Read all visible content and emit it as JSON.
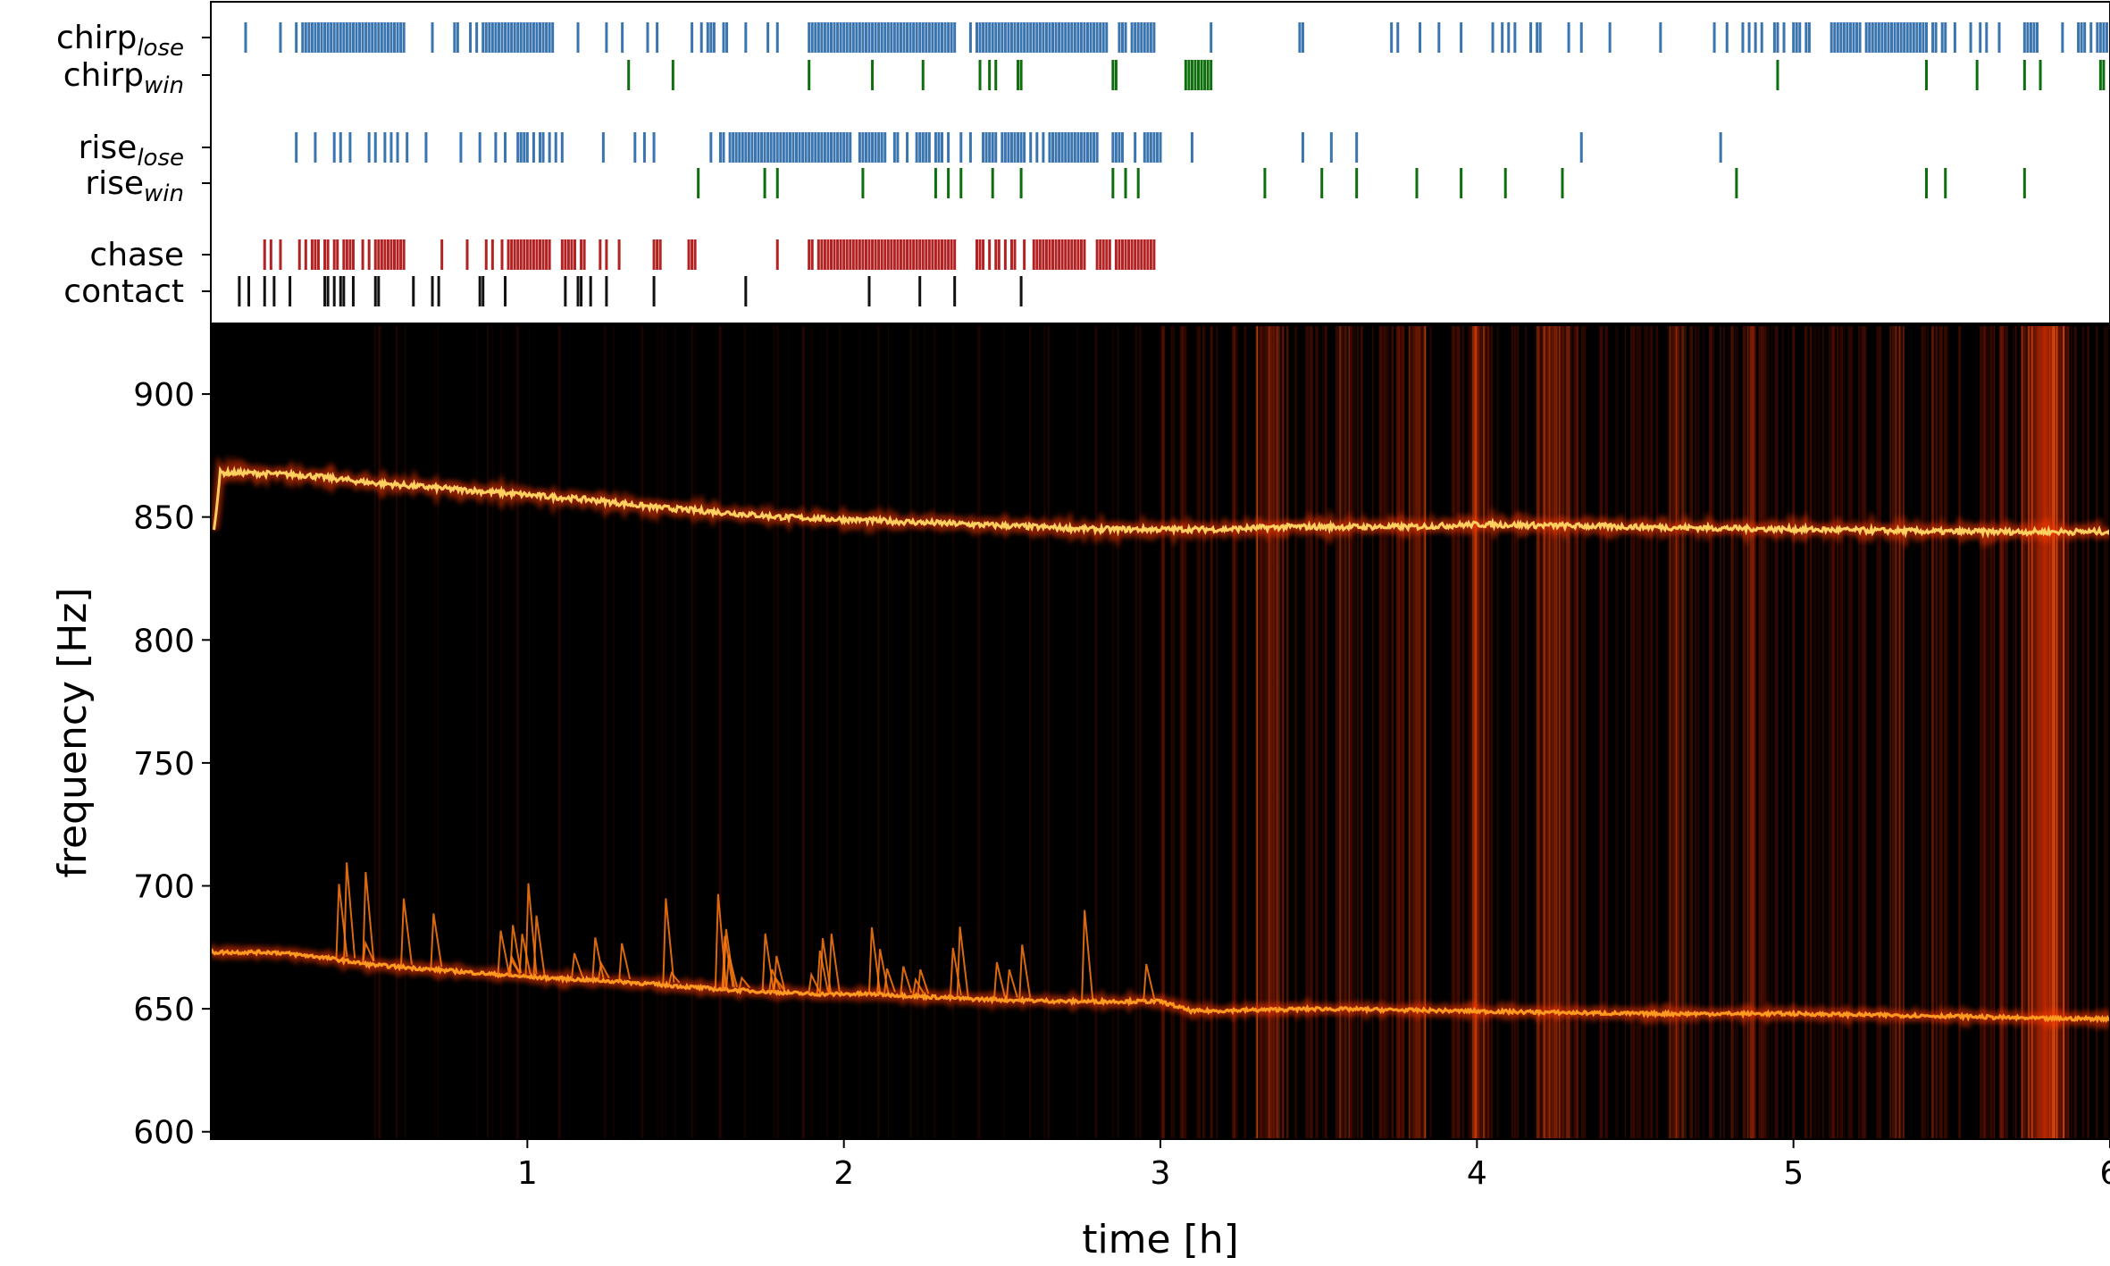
{
  "chart_data": [
    {
      "type": "event-raster",
      "xlim": [
        0,
        6
      ],
      "rows": [
        {
          "label": "chirp",
          "sub": "lose",
          "color": "#3b75af",
          "events": [
            0.11,
            0.22,
            0.27,
            0.29,
            0.3,
            0.31,
            0.32,
            0.33,
            0.34,
            0.35,
            0.36,
            0.37,
            0.38,
            0.39,
            0.4,
            0.41,
            0.42,
            0.43,
            0.44,
            0.45,
            0.46,
            0.47,
            0.48,
            0.49,
            0.5,
            0.51,
            0.52,
            0.53,
            0.54,
            0.55,
            0.56,
            0.57,
            0.58,
            0.59,
            0.6,
            0.61,
            0.7,
            0.77,
            0.78,
            0.82,
            0.84,
            0.86,
            0.87,
            0.88,
            0.89,
            0.9,
            0.91,
            0.92,
            0.93,
            0.94,
            0.95,
            0.96,
            0.97,
            0.98,
            0.99,
            1.0,
            1.01,
            1.02,
            1.03,
            1.04,
            1.05,
            1.06,
            1.07,
            1.08,
            1.16,
            1.25,
            1.3,
            1.38,
            1.41,
            1.52,
            1.55,
            1.57,
            1.58,
            1.59,
            1.62,
            1.63,
            1.69,
            1.76,
            1.79,
            1.89,
            1.9,
            1.91,
            1.92,
            1.93,
            1.94,
            1.95,
            1.96,
            1.97,
            1.98,
            1.99,
            2.0,
            2.01,
            2.02,
            2.03,
            2.04,
            2.05,
            2.06,
            2.07,
            2.08,
            2.09,
            2.1,
            2.11,
            2.12,
            2.13,
            2.14,
            2.15,
            2.16,
            2.17,
            2.18,
            2.19,
            2.2,
            2.21,
            2.22,
            2.23,
            2.24,
            2.25,
            2.26,
            2.27,
            2.28,
            2.29,
            2.3,
            2.31,
            2.32,
            2.33,
            2.34,
            2.35,
            2.4,
            2.42,
            2.43,
            2.44,
            2.45,
            2.46,
            2.47,
            2.48,
            2.49,
            2.5,
            2.51,
            2.52,
            2.53,
            2.54,
            2.55,
            2.56,
            2.57,
            2.58,
            2.59,
            2.6,
            2.61,
            2.62,
            2.63,
            2.64,
            2.65,
            2.66,
            2.67,
            2.68,
            2.69,
            2.7,
            2.71,
            2.72,
            2.73,
            2.74,
            2.75,
            2.76,
            2.77,
            2.78,
            2.79,
            2.8,
            2.81,
            2.82,
            2.83,
            2.87,
            2.88,
            2.89,
            2.91,
            2.92,
            2.93,
            2.94,
            2.95,
            2.96,
            2.97,
            2.98,
            3.16,
            3.44,
            3.45,
            3.73,
            3.75,
            3.82,
            3.88,
            3.95,
            4.05,
            4.08,
            4.1,
            4.12,
            4.17,
            4.19,
            4.2,
            4.29,
            4.33,
            4.42,
            4.58,
            4.75,
            4.79,
            4.84,
            4.86,
            4.88,
            4.9,
            4.94,
            4.95,
            4.97,
            5.0,
            5.01,
            5.02,
            5.04,
            5.05,
            5.12,
            5.13,
            5.14,
            5.15,
            5.16,
            5.17,
            5.18,
            5.19,
            5.2,
            5.21,
            5.23,
            5.24,
            5.25,
            5.26,
            5.27,
            5.28,
            5.29,
            5.3,
            5.31,
            5.32,
            5.33,
            5.34,
            5.35,
            5.36,
            5.37,
            5.38,
            5.39,
            5.4,
            5.41,
            5.42,
            5.44,
            5.45,
            5.47,
            5.48,
            5.51,
            5.56,
            5.59,
            5.61,
            5.65,
            5.73,
            5.74,
            5.75,
            5.76,
            5.77,
            5.85,
            5.9,
            5.91,
            5.92,
            5.94,
            5.96,
            5.97,
            5.98,
            5.99
          ]
        },
        {
          "label": "chirp",
          "sub": "win",
          "color": "#0e6e0e",
          "events": [
            1.32,
            1.46,
            1.89,
            2.09,
            2.25,
            2.43,
            2.46,
            2.48,
            2.55,
            2.56,
            2.85,
            2.86,
            3.08,
            3.09,
            3.1,
            3.11,
            3.12,
            3.13,
            3.14,
            3.15,
            3.16,
            4.95,
            5.42,
            5.58,
            5.73,
            5.78,
            5.97,
            5.98
          ]
        },
        {
          "label": "rise",
          "sub": "lose",
          "color": "#3b75af",
          "events": [
            0.27,
            0.33,
            0.39,
            0.41,
            0.44,
            0.5,
            0.52,
            0.55,
            0.57,
            0.59,
            0.62,
            0.68,
            0.79,
            0.85,
            0.9,
            0.93,
            0.97,
            0.98,
            0.99,
            1.0,
            1.02,
            1.04,
            1.05,
            1.07,
            1.09,
            1.11,
            1.24,
            1.34,
            1.37,
            1.4,
            1.58,
            1.61,
            1.62,
            1.64,
            1.65,
            1.66,
            1.67,
            1.68,
            1.69,
            1.7,
            1.71,
            1.72,
            1.73,
            1.74,
            1.75,
            1.76,
            1.77,
            1.78,
            1.79,
            1.8,
            1.81,
            1.82,
            1.83,
            1.84,
            1.85,
            1.86,
            1.87,
            1.88,
            1.89,
            1.9,
            1.91,
            1.92,
            1.93,
            1.94,
            1.95,
            1.96,
            1.97,
            1.98,
            1.99,
            2.0,
            2.01,
            2.02,
            2.05,
            2.06,
            2.07,
            2.08,
            2.09,
            2.1,
            2.11,
            2.12,
            2.13,
            2.16,
            2.17,
            2.2,
            2.23,
            2.24,
            2.25,
            2.26,
            2.27,
            2.29,
            2.3,
            2.31,
            2.33,
            2.37,
            2.4,
            2.44,
            2.45,
            2.46,
            2.47,
            2.48,
            2.5,
            2.51,
            2.52,
            2.53,
            2.54,
            2.55,
            2.56,
            2.57,
            2.59,
            2.61,
            2.63,
            2.65,
            2.66,
            2.67,
            2.68,
            2.69,
            2.7,
            2.71,
            2.72,
            2.73,
            2.74,
            2.75,
            2.76,
            2.77,
            2.78,
            2.79,
            2.8,
            2.85,
            2.86,
            2.87,
            2.88,
            2.92,
            2.95,
            2.96,
            2.97,
            2.98,
            2.99,
            3.0,
            3.1,
            3.45,
            3.54,
            3.62,
            4.33,
            4.77
          ]
        },
        {
          "label": "rise",
          "sub": "win",
          "color": "#0e6e0e",
          "events": [
            1.54,
            1.75,
            1.79,
            2.06,
            2.29,
            2.33,
            2.37,
            2.47,
            2.56,
            2.85,
            2.89,
            2.93,
            3.33,
            3.51,
            3.62,
            3.81,
            3.95,
            4.09,
            4.27,
            4.82,
            5.42,
            5.48,
            5.73
          ]
        },
        {
          "label": "chase",
          "sub": "",
          "color": "#b22222",
          "events": [
            0.17,
            0.19,
            0.22,
            0.28,
            0.3,
            0.32,
            0.33,
            0.34,
            0.36,
            0.37,
            0.39,
            0.4,
            0.42,
            0.43,
            0.44,
            0.45,
            0.48,
            0.5,
            0.52,
            0.53,
            0.54,
            0.55,
            0.56,
            0.57,
            0.58,
            0.59,
            0.6,
            0.61,
            0.73,
            0.81,
            0.87,
            0.89,
            0.92,
            0.94,
            0.95,
            0.96,
            0.97,
            0.98,
            0.99,
            1.0,
            1.01,
            1.02,
            1.03,
            1.04,
            1.05,
            1.06,
            1.07,
            1.11,
            1.12,
            1.13,
            1.14,
            1.15,
            1.17,
            1.18,
            1.23,
            1.25,
            1.29,
            1.4,
            1.41,
            1.42,
            1.51,
            1.52,
            1.53,
            1.79,
            1.89,
            1.9,
            1.92,
            1.93,
            1.94,
            1.95,
            1.96,
            1.97,
            1.98,
            1.99,
            2.0,
            2.01,
            2.02,
            2.03,
            2.04,
            2.05,
            2.06,
            2.07,
            2.08,
            2.09,
            2.1,
            2.11,
            2.12,
            2.13,
            2.14,
            2.15,
            2.16,
            2.17,
            2.18,
            2.19,
            2.2,
            2.21,
            2.22,
            2.23,
            2.24,
            2.25,
            2.26,
            2.27,
            2.28,
            2.29,
            2.3,
            2.31,
            2.32,
            2.33,
            2.34,
            2.35,
            2.42,
            2.43,
            2.44,
            2.46,
            2.48,
            2.49,
            2.51,
            2.53,
            2.54,
            2.57,
            2.6,
            2.61,
            2.62,
            2.63,
            2.64,
            2.65,
            2.66,
            2.67,
            2.68,
            2.69,
            2.7,
            2.71,
            2.72,
            2.73,
            2.74,
            2.75,
            2.76,
            2.8,
            2.81,
            2.82,
            2.83,
            2.84,
            2.86,
            2.87,
            2.88,
            2.89,
            2.9,
            2.91,
            2.92,
            2.93,
            2.94,
            2.95,
            2.96,
            2.97,
            2.98
          ]
        },
        {
          "label": "contact",
          "sub": "",
          "color": "#111111",
          "events": [
            0.09,
            0.12,
            0.17,
            0.2,
            0.25,
            0.36,
            0.37,
            0.39,
            0.41,
            0.42,
            0.45,
            0.52,
            0.53,
            0.64,
            0.7,
            0.72,
            0.85,
            0.86,
            0.93,
            1.12,
            1.16,
            1.17,
            1.2,
            1.25,
            1.4,
            1.69,
            2.08,
            2.24,
            2.35,
            2.56
          ]
        }
      ]
    },
    {
      "type": "heatmap",
      "xlabel": "time [h]",
      "ylabel": "frequency [Hz]",
      "xlim": [
        0,
        6
      ],
      "ylim": [
        597,
        928
      ],
      "xticks": [
        1,
        2,
        3,
        4,
        5,
        6
      ],
      "xtick_labels": [
        "1",
        "2",
        "3",
        "4",
        "5",
        "6"
      ],
      "yticks": [
        600,
        650,
        700,
        750,
        800,
        850,
        900
      ],
      "ytick_labels": [
        "600",
        "650",
        "700",
        "750",
        "800",
        "850",
        "900"
      ],
      "colormap": "hot",
      "traces": [
        {
          "t": [
            0.01,
            0.03,
            0.1,
            0.3,
            0.5,
            0.8,
            1.0,
            1.2,
            1.4,
            1.6,
            1.8,
            2.0,
            2.2,
            2.4,
            2.6,
            2.8,
            3.0,
            3.2,
            3.4,
            3.6,
            3.8,
            4.0,
            4.5,
            5.0,
            5.5,
            6.0
          ],
          "f": [
            845,
            868,
            868,
            867,
            864,
            861,
            859,
            857,
            854,
            852,
            850,
            849,
            848,
            847,
            846,
            845,
            845,
            845,
            846,
            846,
            846,
            847,
            846,
            845,
            844,
            844
          ]
        },
        {
          "t": [
            0.0,
            0.2,
            0.35,
            0.5,
            0.7,
            1.0,
            1.3,
            1.6,
            1.9,
            2.1,
            2.4,
            2.7,
            3.0,
            3.1,
            3.5,
            4.0,
            4.5,
            5.0,
            5.5,
            5.8,
            6.0
          ],
          "f": [
            673,
            673,
            671,
            668,
            666,
            663,
            661,
            658,
            656,
            656,
            654,
            653,
            653,
            649,
            650,
            649,
            648,
            648,
            647,
            646,
            646
          ]
        }
      ],
      "noise_bands": [
        {
          "t0": 3.3,
          "t1": 3.4,
          "i": 0.35
        },
        {
          "t0": 3.55,
          "t1": 3.6,
          "i": 0.25
        },
        {
          "t0": 3.78,
          "t1": 3.84,
          "i": 0.55
        },
        {
          "t0": 3.97,
          "t1": 4.03,
          "i": 0.6
        },
        {
          "t0": 4.18,
          "t1": 4.3,
          "i": 0.5
        },
        {
          "t0": 4.6,
          "t1": 4.66,
          "i": 0.3
        },
        {
          "t0": 4.85,
          "t1": 4.88,
          "i": 0.3
        },
        {
          "t0": 5.3,
          "t1": 5.35,
          "i": 0.25
        },
        {
          "t0": 5.72,
          "t1": 5.87,
          "i": 0.95
        }
      ]
    }
  ]
}
